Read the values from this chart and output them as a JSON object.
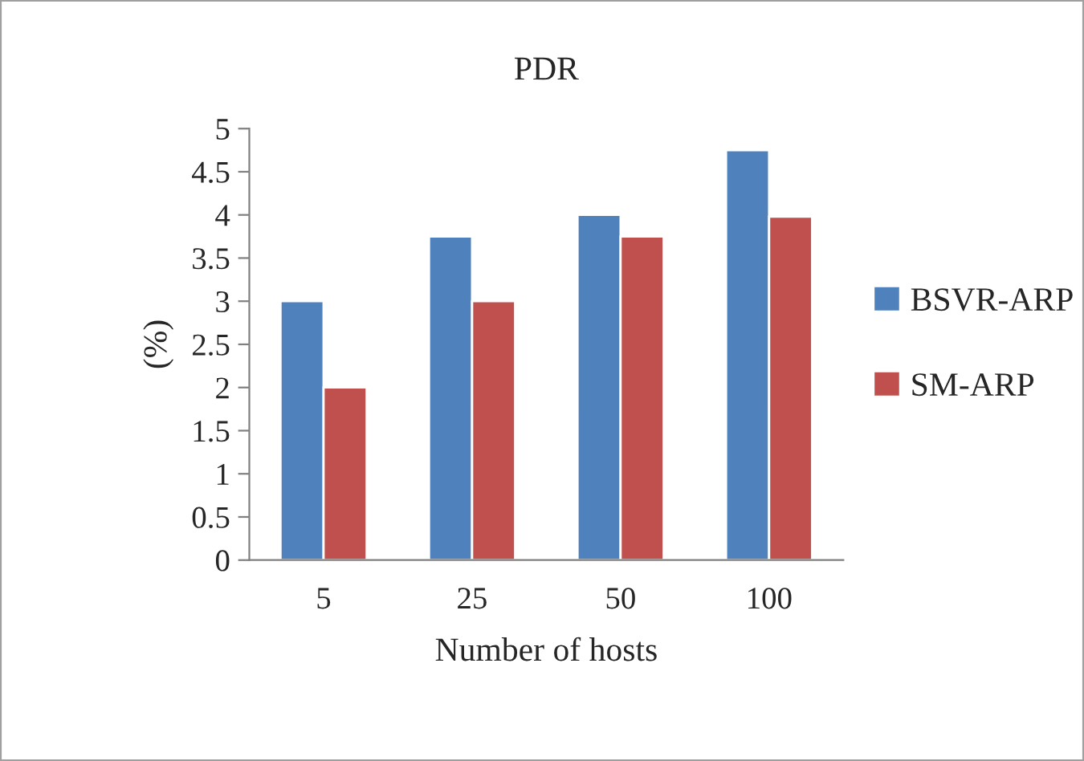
{
  "chart_data": {
    "type": "bar",
    "title": "PDR",
    "xlabel": "Number of hosts",
    "ylabel": "(%)",
    "categories": [
      "5",
      "25",
      "50",
      "100"
    ],
    "series": [
      {
        "name": "BSVR-ARP",
        "color": "#4f81bd",
        "values": [
          3,
          3.75,
          4,
          4.75
        ]
      },
      {
        "name": "SM-ARP",
        "color": "#c0504d",
        "values": [
          2,
          3,
          3.75,
          3.98
        ]
      }
    ],
    "ylim": [
      0,
      5
    ],
    "yticks": [
      0,
      0.5,
      1,
      1.5,
      2,
      2.5,
      3,
      3.5,
      4,
      4.5,
      5
    ],
    "grid": false,
    "legend": "right"
  }
}
